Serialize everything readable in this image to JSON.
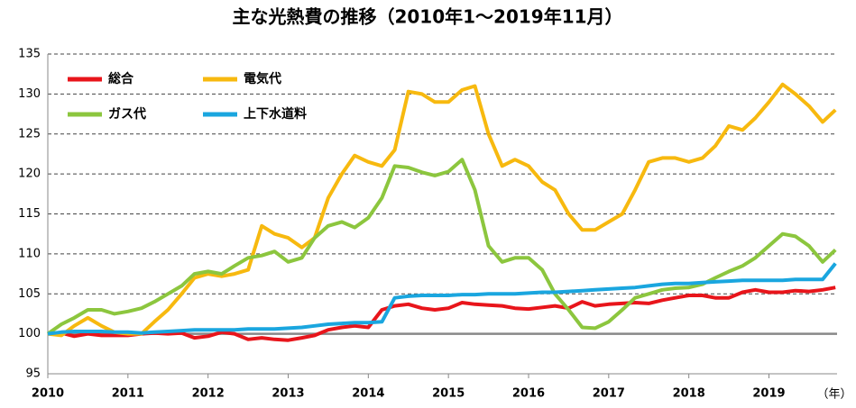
{
  "chart_data": {
    "type": "line",
    "title": "主な光熱費の推移（2010年1～2019年11月）",
    "x_label": "（年）",
    "x": [
      2010,
      2010.17,
      2010.33,
      2010.5,
      2010.67,
      2010.83,
      2011,
      2011.17,
      2011.33,
      2011.5,
      2011.67,
      2011.83,
      2012,
      2012.17,
      2012.33,
      2012.5,
      2012.67,
      2012.83,
      2013,
      2013.17,
      2013.33,
      2013.5,
      2013.67,
      2013.83,
      2014,
      2014.17,
      2014.33,
      2014.5,
      2014.67,
      2014.83,
      2015,
      2015.17,
      2015.33,
      2015.5,
      2015.67,
      2015.83,
      2016,
      2016.17,
      2016.33,
      2016.5,
      2016.67,
      2016.83,
      2017,
      2017.17,
      2017.33,
      2017.5,
      2017.67,
      2017.83,
      2018,
      2018.17,
      2018.33,
      2018.5,
      2018.67,
      2018.83,
      2019,
      2019.17,
      2019.33,
      2019.5,
      2019.67,
      2019.83
    ],
    "series": [
      {
        "name": "総合",
        "color": "#e8151b",
        "values": [
          100,
          100.1,
          99.7,
          100,
          99.8,
          99.8,
          99.8,
          100,
          100.1,
          100,
          100.1,
          99.5,
          99.7,
          100.2,
          100,
          99.3,
          99.5,
          99.3,
          99.2,
          99.5,
          99.8,
          100.5,
          100.8,
          101,
          100.8,
          103,
          103.5,
          103.7,
          103.2,
          103,
          103.2,
          103.9,
          103.7,
          103.6,
          103.5,
          103.2,
          103.1,
          103.3,
          103.5,
          103.2,
          104,
          103.5,
          103.7,
          103.8,
          103.9,
          103.8,
          104.2,
          104.5,
          104.8,
          104.8,
          104.5,
          104.5,
          105.2,
          105.5,
          105.2,
          105.2,
          105.4,
          105.3,
          105.5,
          105.8
        ]
      },
      {
        "name": "電気代",
        "color": "#f7b90f",
        "values": [
          100,
          99.8,
          101,
          102,
          101,
          100.2,
          100,
          100,
          101.5,
          103,
          105,
          107,
          107.5,
          107.2,
          107.5,
          108,
          113.5,
          112.5,
          112,
          110.8,
          112,
          117,
          120,
          122.3,
          121.5,
          121,
          123,
          130.3,
          130,
          129,
          129,
          130.5,
          131,
          125,
          121,
          121.8,
          121,
          119,
          118,
          115,
          113,
          113,
          114,
          115,
          118,
          121.5,
          122,
          122,
          121.5,
          122,
          123.5,
          126,
          125.5,
          127,
          129,
          131.2,
          130,
          128.5,
          126.5,
          128
        ]
      },
      {
        "name": "ガス代",
        "color": "#8cc63e",
        "values": [
          100,
          101.2,
          102,
          103,
          103,
          102.5,
          102.8,
          103.2,
          104,
          105,
          106,
          107.5,
          107.8,
          107.5,
          108.5,
          109.5,
          109.8,
          110.3,
          109,
          109.5,
          112,
          113.5,
          114,
          113.3,
          114.5,
          117,
          121,
          120.8,
          120.2,
          119.8,
          120.3,
          121.8,
          118,
          111,
          109,
          109.5,
          109.5,
          108,
          105,
          103,
          100.8,
          100.7,
          101.5,
          103,
          104.5,
          105,
          105.5,
          105.7,
          105.8,
          106.2,
          107,
          107.8,
          108.5,
          109.5,
          111,
          112.5,
          112.2,
          111,
          109,
          110.5
        ]
      },
      {
        "name": "上下水道料",
        "color": "#1aa6df",
        "values": [
          100,
          100.2,
          100.3,
          100.3,
          100.3,
          100.2,
          100.2,
          100.1,
          100.2,
          100.3,
          100.4,
          100.5,
          100.5,
          100.5,
          100.5,
          100.6,
          100.6,
          100.6,
          100.7,
          100.8,
          101,
          101.2,
          101.3,
          101.4,
          101.4,
          101.5,
          104.5,
          104.7,
          104.8,
          104.8,
          104.8,
          104.9,
          104.9,
          105,
          105,
          105,
          105.1,
          105.2,
          105.2,
          105.3,
          105.4,
          105.5,
          105.6,
          105.7,
          105.8,
          106,
          106.2,
          106.3,
          106.3,
          106.4,
          106.5,
          106.6,
          106.7,
          106.7,
          106.7,
          106.7,
          106.8,
          106.8,
          106.8,
          108.8
        ]
      }
    ],
    "xlim": [
      2010,
      2019.85
    ],
    "xticks": [
      2010,
      2011,
      2012,
      2013,
      2014,
      2015,
      2016,
      2017,
      2018,
      2019
    ],
    "ylim": [
      95,
      135
    ],
    "yticks": [
      95,
      100,
      105,
      110,
      115,
      120,
      125,
      130,
      135
    ],
    "baseline": 100,
    "grid": true,
    "legend": "upper left"
  }
}
